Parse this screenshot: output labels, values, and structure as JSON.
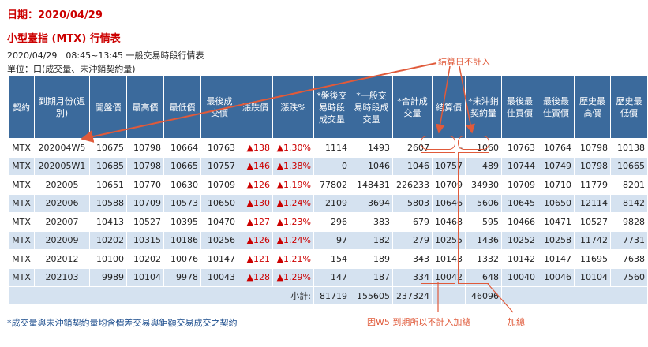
{
  "date_line": "日期：2020/04/29",
  "title": {
    "main": "小型臺指",
    "product": "(MTX)",
    "suffix": "行情表"
  },
  "subheading": "2020/04/29　08:45~13:45 一般交易時段行情表",
  "unit": "單位：口(成交量、未沖銷契約量)",
  "headers": [
    "契約",
    "到期月份(週別)",
    "開盤價",
    "最高價",
    "最低價",
    "最後成交價",
    "漲跌價",
    "漲跌%",
    "*盤後交易時段成交量",
    "*一般交易時段成交量",
    "*合計成交量",
    "結算價",
    "*未沖銷契約量",
    "最後最佳買價",
    "最後最佳賣價",
    "歷史最高價",
    "歷史最低價"
  ],
  "rows": [
    [
      "MTX",
      "202004W5",
      "10675",
      "10798",
      "10664",
      "10763",
      "▲138",
      "▲1.30%",
      "1114",
      "1493",
      "2607",
      "-",
      "1060",
      "10763",
      "10764",
      "10798",
      "10138"
    ],
    [
      "MTX",
      "202005W1",
      "10685",
      "10798",
      "10665",
      "10757",
      "▲146",
      "▲1.38%",
      "0",
      "1046",
      "1046",
      "10757",
      "489",
      "10744",
      "10749",
      "10798",
      "10665"
    ],
    [
      "MTX",
      "202005",
      "10651",
      "10770",
      "10630",
      "10709",
      "▲126",
      "▲1.19%",
      "77802",
      "148431",
      "226233",
      "10709",
      "34930",
      "10709",
      "10710",
      "11779",
      "8201"
    ],
    [
      "MTX",
      "202006",
      "10588",
      "10709",
      "10573",
      "10650",
      "▲130",
      "▲1.24%",
      "2109",
      "3694",
      "5803",
      "10646",
      "5606",
      "10645",
      "10650",
      "12114",
      "8142"
    ],
    [
      "MTX",
      "202007",
      "10413",
      "10527",
      "10395",
      "10470",
      "▲127",
      "▲1.23%",
      "296",
      "383",
      "679",
      "10468",
      "595",
      "10466",
      "10471",
      "10527",
      "9828"
    ],
    [
      "MTX",
      "202009",
      "10202",
      "10315",
      "10186",
      "10256",
      "▲126",
      "▲1.24%",
      "97",
      "182",
      "279",
      "10255",
      "1436",
      "10252",
      "10258",
      "11742",
      "7731"
    ],
    [
      "MTX",
      "202012",
      "10100",
      "10202",
      "10076",
      "10147",
      "▲121",
      "▲1.21%",
      "154",
      "189",
      "343",
      "10143",
      "1332",
      "10142",
      "10147",
      "11695",
      "7638"
    ],
    [
      "MTX",
      "202103",
      "9989",
      "10104",
      "9978",
      "10043",
      "▲128",
      "▲1.29%",
      "147",
      "187",
      "334",
      "10042",
      "648",
      "10040",
      "10046",
      "10104",
      "7560"
    ]
  ],
  "totals": {
    "label": "小計:",
    "after_hours": "81719",
    "regular": "155605",
    "combined": "237324",
    "open_interest": "46096"
  },
  "footnote": "*成交量與未沖銷契約量均含價差交易與鉅額交易成交之契約",
  "annotations": {
    "settlement_note": "結算日不計入",
    "w5_note": "因W5 到期所以不計入加總",
    "sum_note": "加總"
  },
  "colors": {
    "header_bg": "#3b6a9c",
    "stripe": "#d5e2f0",
    "accent_red": "#cc0000",
    "annotation": "#e05a3a",
    "footnote": "#1a4b8c"
  }
}
